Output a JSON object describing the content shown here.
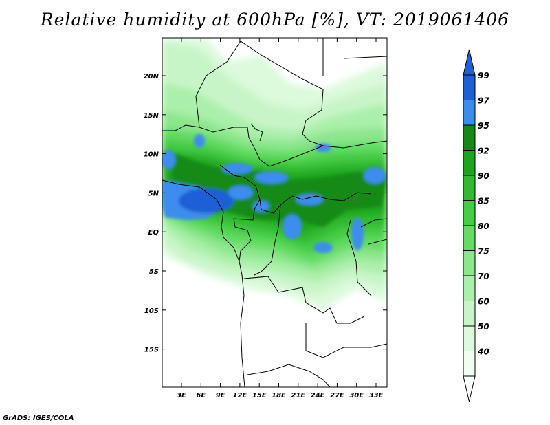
{
  "title": "Relative humidity at 600hPa [%], VT: 2019061406",
  "credit": "GrADS: IGES/COLA",
  "lat_ticks": [
    "20N",
    "15N",
    "10N",
    "5N",
    "EQ",
    "5S",
    "10S",
    "15S"
  ],
  "lon_ticks": [
    "3E",
    "6E",
    "9E",
    "12E",
    "15E",
    "18E",
    "21E",
    "24E",
    "27E",
    "30E",
    "33E"
  ],
  "colorbar": {
    "labels": [
      "99",
      "97",
      "95",
      "92",
      "90",
      "85",
      "80",
      "75",
      "70",
      "60",
      "50",
      "40"
    ],
    "colors": [
      "#1f5fd6",
      "#3c8cf0",
      "#148a14",
      "#1ea51e",
      "#32b932",
      "#46cd46",
      "#64dc64",
      "#8ce68c",
      "#aaf0aa",
      "#c8f5c8",
      "#dcfadc",
      "#f0fdf0"
    ],
    "top_arrow_color": "#1f5fd6"
  }
}
